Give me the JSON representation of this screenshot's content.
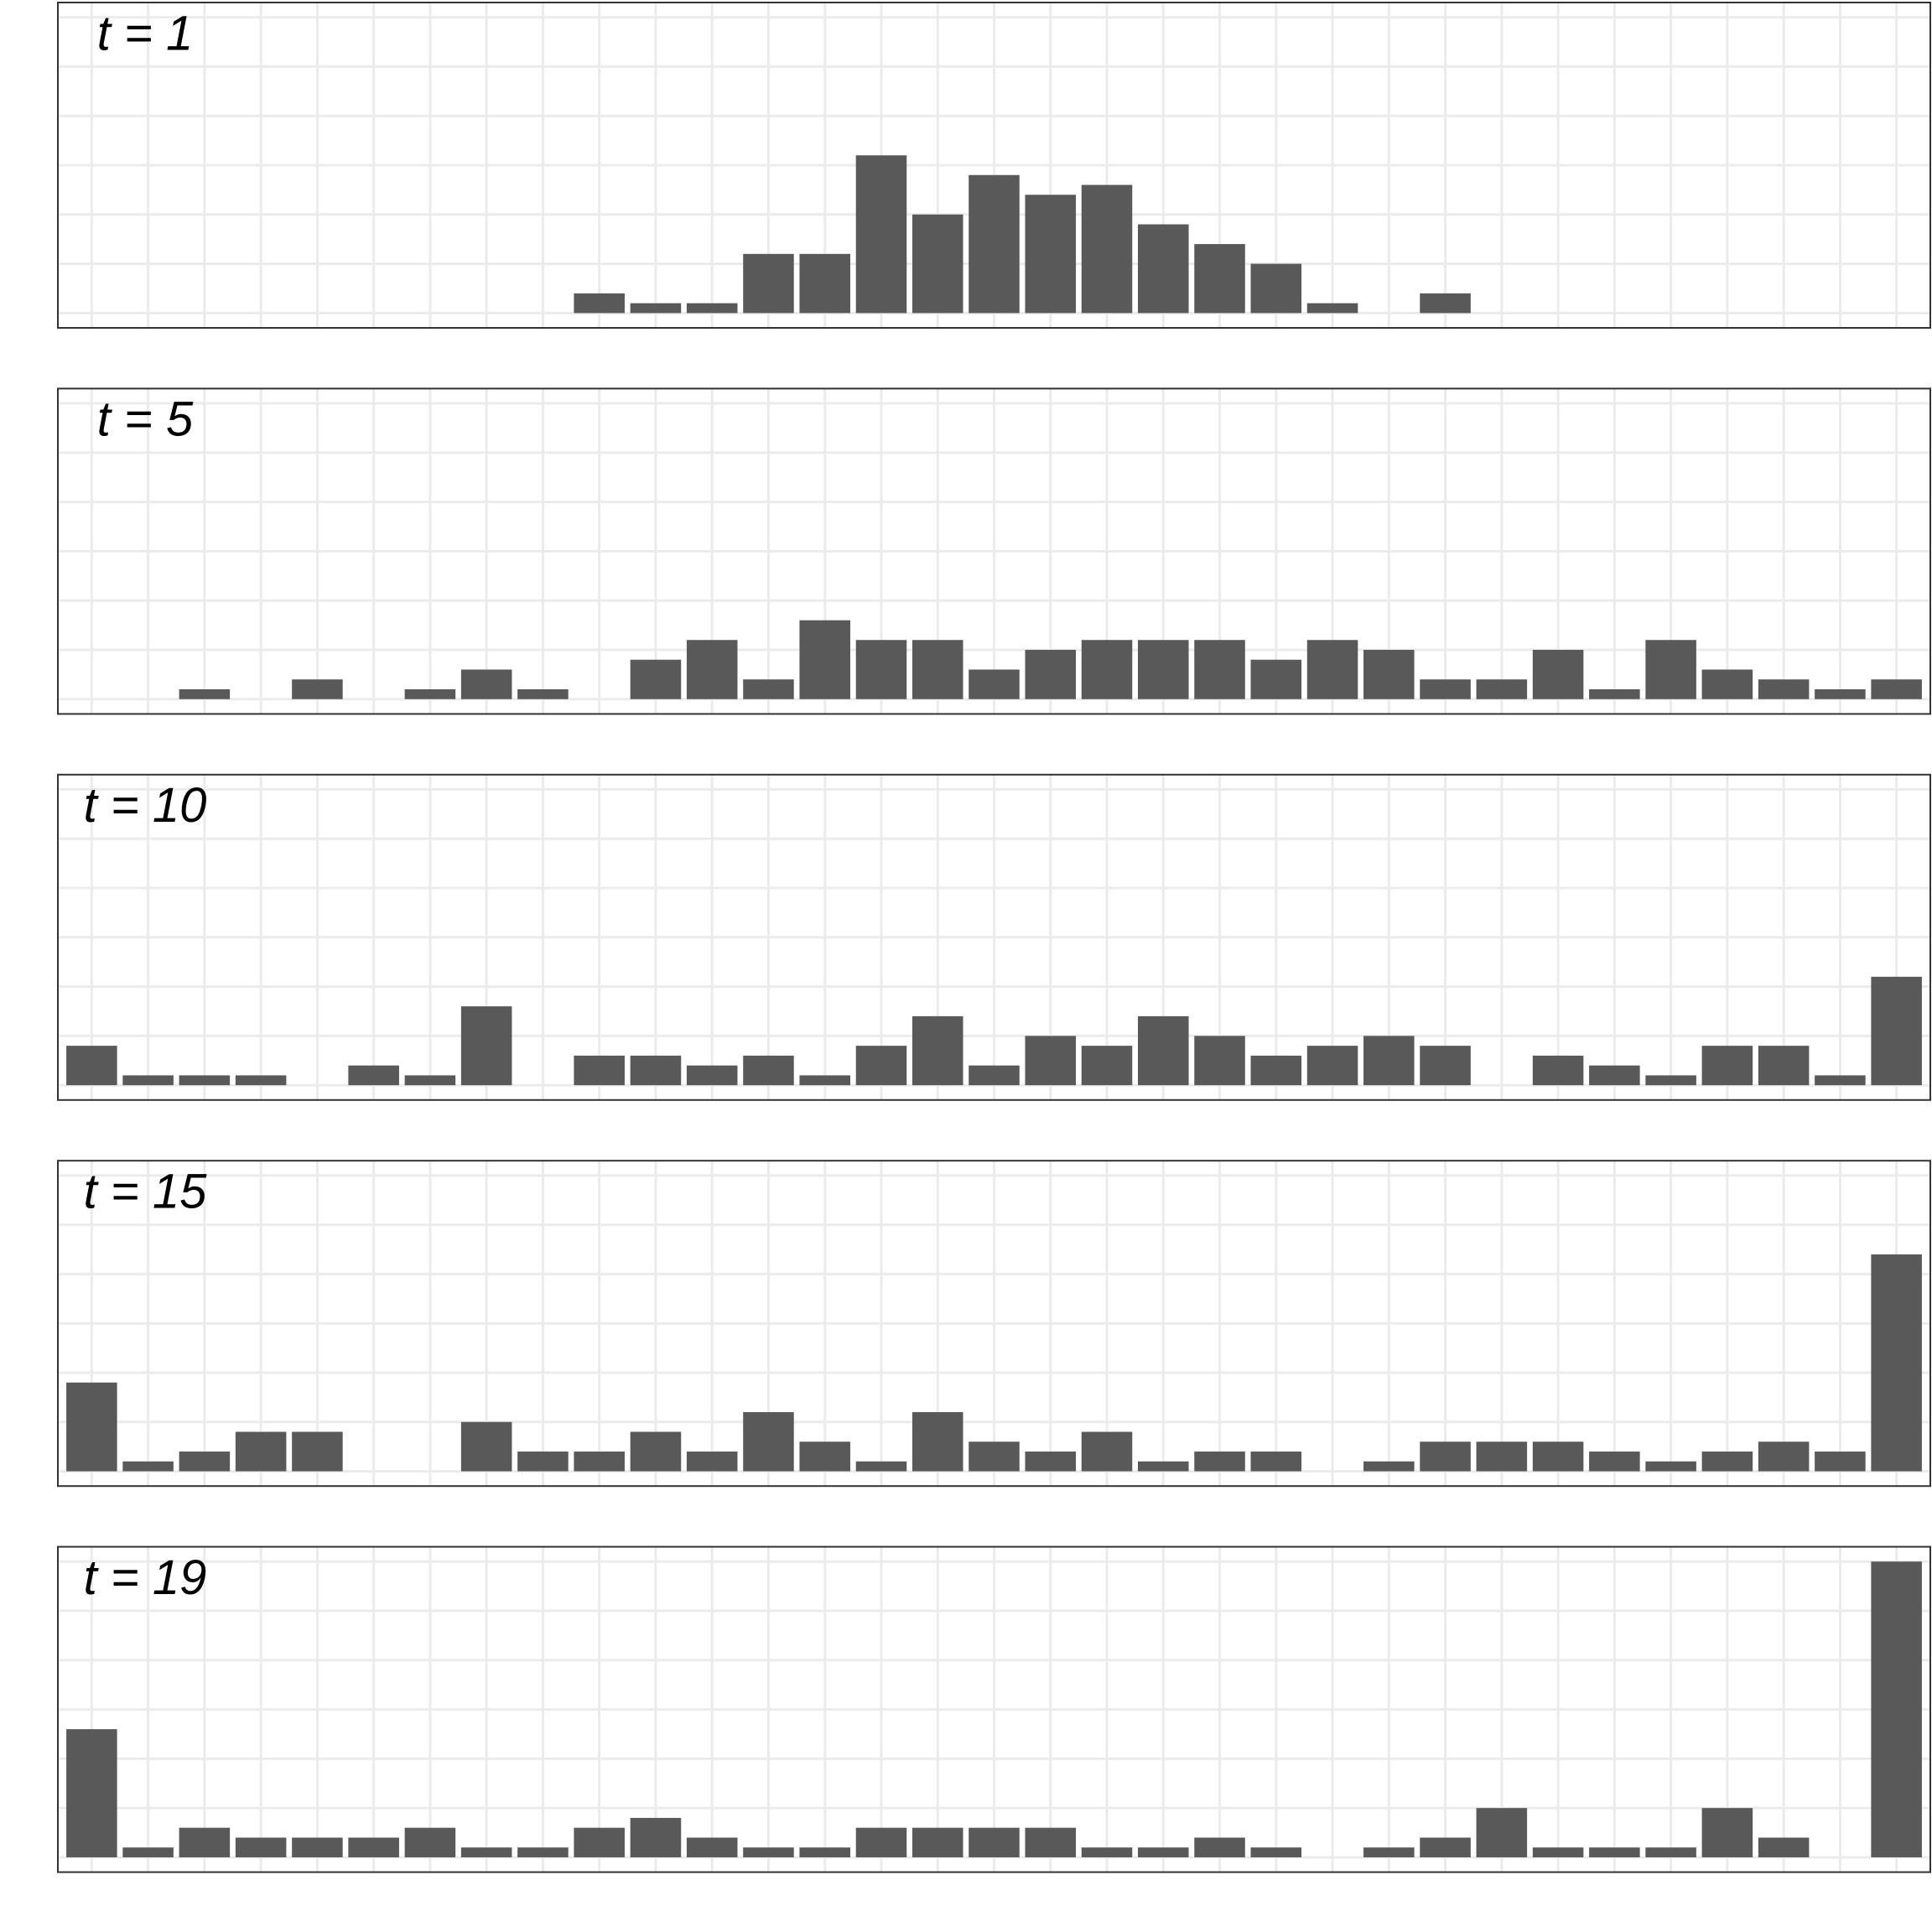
{
  "chart_data": [
    {
      "type": "bar",
      "title": "t = 1",
      "color": "#595959",
      "grid": true,
      "x": [
        0,
        1,
        2,
        3,
        4,
        5,
        6,
        7,
        8,
        9,
        10,
        11,
        12,
        13,
        14,
        15,
        16,
        17,
        18,
        19,
        20,
        21,
        22,
        23,
        24,
        25,
        26,
        27,
        28,
        29,
        30,
        31,
        32
      ],
      "values": [
        0,
        0,
        0,
        0,
        0,
        0,
        0,
        0,
        0,
        2,
        1,
        1,
        6,
        6,
        16,
        10,
        14,
        12,
        13,
        9,
        7,
        5,
        1,
        0,
        2,
        0,
        0,
        0,
        0,
        0,
        0,
        0,
        0
      ],
      "xlim": [
        -0.6,
        32.6
      ],
      "ylim": [
        -1.5,
        31.5
      ],
      "xticks": [
        0,
        1,
        2,
        3,
        4,
        5,
        6,
        7,
        8,
        9,
        10,
        11,
        12,
        13,
        14,
        15,
        16,
        17,
        18,
        19,
        20,
        21,
        22,
        23,
        24,
        25,
        26,
        27,
        28,
        29,
        30,
        31,
        32
      ],
      "yticks": [
        0,
        5,
        10,
        15,
        20,
        25,
        30
      ]
    },
    {
      "type": "bar",
      "title": "t = 5",
      "color": "#595959",
      "grid": true,
      "x": [
        0,
        1,
        2,
        3,
        4,
        5,
        6,
        7,
        8,
        9,
        10,
        11,
        12,
        13,
        14,
        15,
        16,
        17,
        18,
        19,
        20,
        21,
        22,
        23,
        24,
        25,
        26,
        27,
        28,
        29,
        30,
        31,
        32
      ],
      "values": [
        0,
        0,
        1,
        0,
        2,
        0,
        1,
        3,
        1,
        0,
        4,
        6,
        2,
        8,
        6,
        6,
        3,
        5,
        6,
        6,
        6,
        4,
        6,
        5,
        2,
        2,
        5,
        1,
        6,
        3,
        2,
        1,
        2
      ],
      "xlim": [
        -0.6,
        32.6
      ],
      "ylim": [
        -1.5,
        31.5
      ],
      "xticks": [
        0,
        1,
        2,
        3,
        4,
        5,
        6,
        7,
        8,
        9,
        10,
        11,
        12,
        13,
        14,
        15,
        16,
        17,
        18,
        19,
        20,
        21,
        22,
        23,
        24,
        25,
        26,
        27,
        28,
        29,
        30,
        31,
        32
      ],
      "yticks": [
        0,
        5,
        10,
        15,
        20,
        25,
        30
      ]
    },
    {
      "type": "bar",
      "title": "t = 10",
      "color": "#595959",
      "grid": true,
      "x": [
        0,
        1,
        2,
        3,
        4,
        5,
        6,
        7,
        8,
        9,
        10,
        11,
        12,
        13,
        14,
        15,
        16,
        17,
        18,
        19,
        20,
        21,
        22,
        23,
        24,
        25,
        26,
        27,
        28,
        29,
        30,
        31,
        32
      ],
      "values": [
        4,
        1,
        1,
        1,
        0,
        2,
        1,
        8,
        0,
        3,
        3,
        2,
        3,
        1,
        4,
        7,
        2,
        5,
        4,
        7,
        5,
        3,
        4,
        5,
        4,
        0,
        3,
        2,
        1,
        4,
        4,
        1,
        11
      ],
      "xlim": [
        -0.6,
        32.6
      ],
      "ylim": [
        -1.5,
        31.5
      ],
      "xticks": [
        0,
        1,
        2,
        3,
        4,
        5,
        6,
        7,
        8,
        9,
        10,
        11,
        12,
        13,
        14,
        15,
        16,
        17,
        18,
        19,
        20,
        21,
        22,
        23,
        24,
        25,
        26,
        27,
        28,
        29,
        30,
        31,
        32
      ],
      "yticks": [
        0,
        5,
        10,
        15,
        20,
        25,
        30
      ]
    },
    {
      "type": "bar",
      "title": "t = 15",
      "color": "#595959",
      "grid": true,
      "x": [
        0,
        1,
        2,
        3,
        4,
        5,
        6,
        7,
        8,
        9,
        10,
        11,
        12,
        13,
        14,
        15,
        16,
        17,
        18,
        19,
        20,
        21,
        22,
        23,
        24,
        25,
        26,
        27,
        28,
        29,
        30,
        31,
        32
      ],
      "values": [
        9,
        1,
        2,
        4,
        4,
        0,
        0,
        5,
        2,
        2,
        4,
        2,
        6,
        3,
        1,
        6,
        3,
        2,
        4,
        1,
        2,
        2,
        0,
        1,
        3,
        3,
        3,
        2,
        1,
        2,
        3,
        2,
        22
      ],
      "xlim": [
        -0.6,
        32.6
      ],
      "ylim": [
        -1.5,
        31.5
      ],
      "xticks": [
        0,
        1,
        2,
        3,
        4,
        5,
        6,
        7,
        8,
        9,
        10,
        11,
        12,
        13,
        14,
        15,
        16,
        17,
        18,
        19,
        20,
        21,
        22,
        23,
        24,
        25,
        26,
        27,
        28,
        29,
        30,
        31,
        32
      ],
      "yticks": [
        0,
        5,
        10,
        15,
        20,
        25,
        30
      ]
    },
    {
      "type": "bar",
      "title": "t = 19",
      "color": "#595959",
      "grid": true,
      "x": [
        0,
        1,
        2,
        3,
        4,
        5,
        6,
        7,
        8,
        9,
        10,
        11,
        12,
        13,
        14,
        15,
        16,
        17,
        18,
        19,
        20,
        21,
        22,
        23,
        24,
        25,
        26,
        27,
        28,
        29,
        30,
        31,
        32
      ],
      "values": [
        13,
        1,
        3,
        2,
        2,
        2,
        3,
        1,
        1,
        3,
        4,
        2,
        1,
        1,
        3,
        3,
        3,
        3,
        1,
        1,
        2,
        1,
        0,
        1,
        2,
        5,
        1,
        1,
        1,
        5,
        2,
        0,
        30
      ],
      "xlim": [
        -0.6,
        32.6
      ],
      "ylim": [
        -1.5,
        31.5
      ],
      "xticks": [
        0,
        1,
        2,
        3,
        4,
        5,
        6,
        7,
        8,
        9,
        10,
        11,
        12,
        13,
        14,
        15,
        16,
        17,
        18,
        19,
        20,
        21,
        22,
        23,
        24,
        25,
        26,
        27,
        28,
        29,
        30,
        31,
        32
      ],
      "yticks": [
        0,
        5,
        10,
        15,
        20,
        25,
        30
      ]
    }
  ]
}
